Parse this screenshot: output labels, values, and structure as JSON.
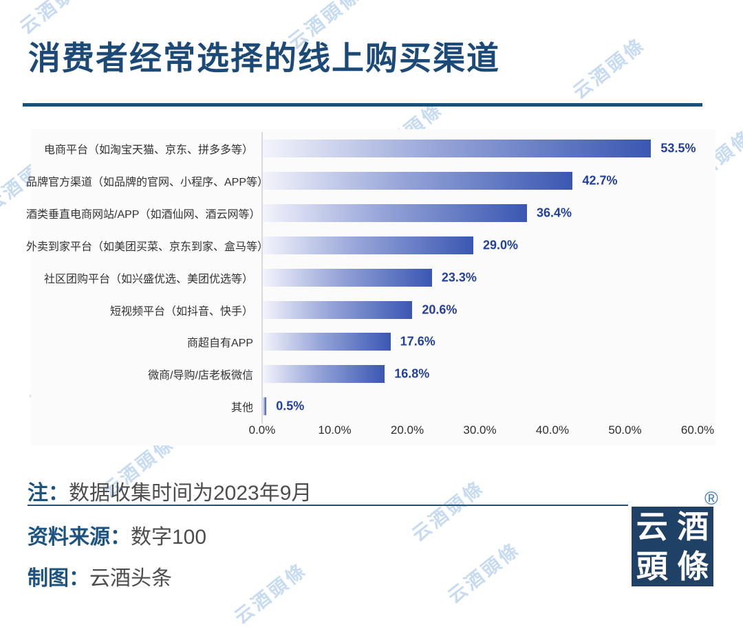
{
  "watermark": {
    "text": "云酒頭條",
    "color": "#bdd5f0"
  },
  "header": {
    "title": "消费者经常选择的线上购买渠道",
    "title_color": "#1b4a78",
    "rule_color": "#15517f"
  },
  "chart_data": {
    "type": "bar",
    "orientation": "horizontal",
    "title": "消费者经常选择的线上购买渠道",
    "categories": [
      "电商平台（如淘宝天猫、京东、拼多多等）",
      "品牌官方渠道（如品牌的官网、小程序、APP等）",
      "酒类垂直电商网站/APP（如酒仙网、酒云网等）",
      "外卖到家平台（如美团买菜、京东到家、盒马等）",
      "社区团购平台（如兴盛优选、美团优选等）",
      "短视频平台（如抖音、快手）",
      "商超自有APP",
      "微商/导购/店老板微信",
      "其他"
    ],
    "values": [
      53.5,
      42.7,
      36.4,
      29.0,
      23.3,
      20.6,
      17.6,
      16.8,
      0.5
    ],
    "value_labels": [
      "53.5%",
      "42.7%",
      "36.4%",
      "29.0%",
      "23.3%",
      "20.6%",
      "17.6%",
      "16.8%",
      "0.5%"
    ],
    "x_ticks": [
      "0.0%",
      "10.0%",
      "20.0%",
      "30.0%",
      "40.0%",
      "50.0%",
      "60.0%"
    ],
    "xlim": [
      0,
      60
    ],
    "grid": false,
    "legend": "none",
    "bar_gradient_start": "#f3f4fb",
    "bar_gradient_mid": "#96a4d8",
    "bar_gradient_end": "#3a57b2",
    "value_label_color": "#21409e"
  },
  "footer": {
    "note_label": "注：",
    "note_text": "数据收集时间为2023年9月",
    "source_label": "资料来源：",
    "source_text": "数字100",
    "credit_label": "制图：",
    "credit_text": "云酒头条",
    "label_color": "#1d5380",
    "text_color": "#4d4d4d",
    "rule_color": "#1c5280"
  },
  "logo": {
    "chars": [
      "云",
      "酒",
      "頭",
      "條"
    ],
    "registered_mark": "®",
    "background": "#1f4166"
  }
}
